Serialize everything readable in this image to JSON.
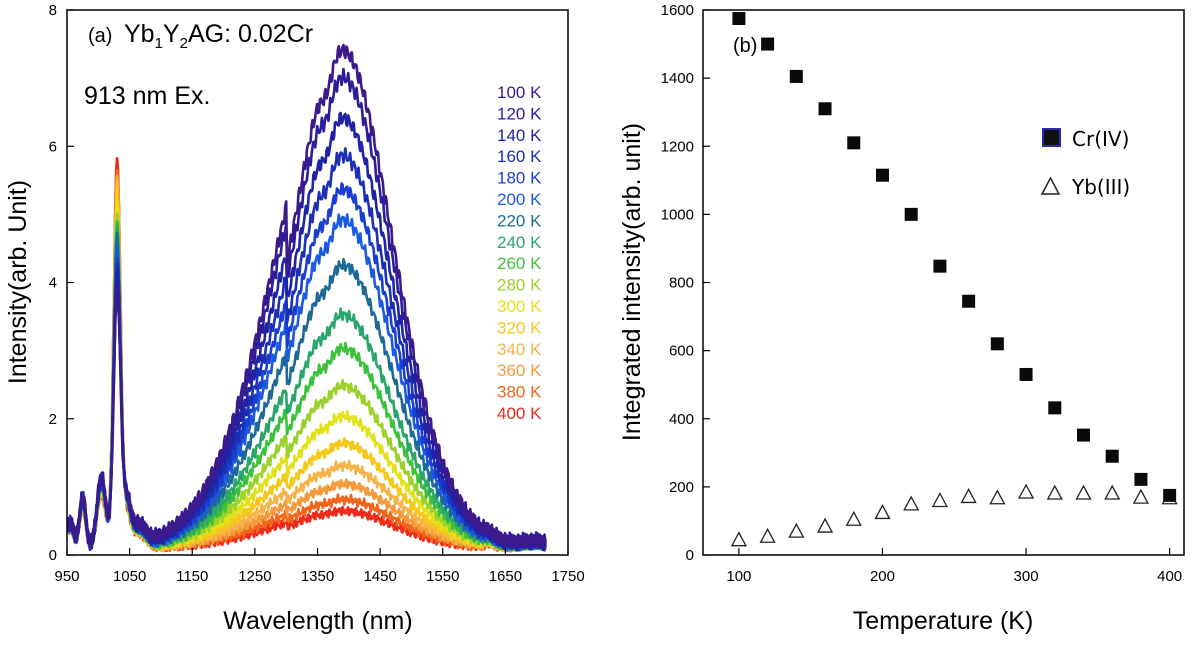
{
  "chart_data": [
    {
      "type": "line",
      "panel_label": "(a)",
      "annotation_compound": {
        "base": "Yb",
        "sub1": "1",
        "mid": "Y",
        "sub2": "2",
        "tail": "AG: 0.02Cr"
      },
      "annotation_excitation": "913 nm Ex.",
      "xlabel": "Wavelength (nm)",
      "ylabel": "Intensity(arb. Unit)",
      "xlim": [
        950,
        1750
      ],
      "ylim": [
        0,
        8
      ],
      "xticks": [
        950,
        1050,
        1150,
        1250,
        1350,
        1450,
        1550,
        1650,
        1750
      ],
      "yticks": [
        0,
        2,
        4,
        6,
        8
      ],
      "legend_position": "right",
      "series": [
        {
          "name": "100 K",
          "color": "#3d1a8c",
          "peak": 7.35
        },
        {
          "name": "120 K",
          "color": "#2c1d9a",
          "peak": 6.95
        },
        {
          "name": "140 K",
          "color": "#1f24a6",
          "peak": 6.35
        },
        {
          "name": "160 K",
          "color": "#1a2fb4",
          "peak": 5.8
        },
        {
          "name": "180 K",
          "color": "#1a3fd0",
          "peak": 5.3
        },
        {
          "name": "200 K",
          "color": "#1a5ae0",
          "peak": 4.85
        },
        {
          "name": "220 K",
          "color": "#1e6a96",
          "peak": 4.18
        },
        {
          "name": "240 K",
          "color": "#2aa66a",
          "peak": 3.45
        },
        {
          "name": "260 K",
          "color": "#3cc23a",
          "peak": 2.95
        },
        {
          "name": "280 K",
          "color": "#9ad12a",
          "peak": 2.4
        },
        {
          "name": "300 K",
          "color": "#e2e21a",
          "peak": 1.95
        },
        {
          "name": "320 K",
          "color": "#f5c81a",
          "peak": 1.55
        },
        {
          "name": "340 K",
          "color": "#f6b347",
          "peak": 1.22
        },
        {
          "name": "360 K",
          "color": "#f59a3a",
          "peak": 0.95
        },
        {
          "name": "380 K",
          "color": "#f2641a",
          "peak": 0.72
        },
        {
          "name": "400 K",
          "color": "#ee2a1a",
          "peak": 0.55
        }
      ]
    },
    {
      "type": "scatter",
      "panel_label": "(b)",
      "xlabel": "Temperature (K)",
      "ylabel": "Integrated intensity(arb. unit)",
      "xlim": [
        75,
        410
      ],
      "ylim": [
        0,
        1600
      ],
      "xticks": [
        100,
        200,
        300,
        400
      ],
      "yticks": [
        0,
        200,
        400,
        600,
        800,
        1000,
        1200,
        1400,
        1600
      ],
      "legend_position": "right",
      "series": [
        {
          "name": "Cr(IV)",
          "marker": "filled-square",
          "x": [
            100,
            120,
            140,
            160,
            180,
            200,
            220,
            240,
            260,
            280,
            300,
            320,
            340,
            360,
            380,
            400
          ],
          "y": [
            1575,
            1500,
            1405,
            1310,
            1210,
            1115,
            1000,
            848,
            745,
            620,
            530,
            432,
            352,
            290,
            222,
            175
          ]
        },
        {
          "name": "Yb(III)",
          "marker": "open-triangle",
          "x": [
            100,
            120,
            140,
            160,
            180,
            200,
            220,
            240,
            260,
            280,
            300,
            320,
            340,
            360,
            380,
            400
          ],
          "y": [
            45,
            55,
            70,
            85,
            105,
            125,
            150,
            160,
            172,
            168,
            185,
            182,
            182,
            182,
            170,
            168
          ]
        }
      ]
    }
  ]
}
